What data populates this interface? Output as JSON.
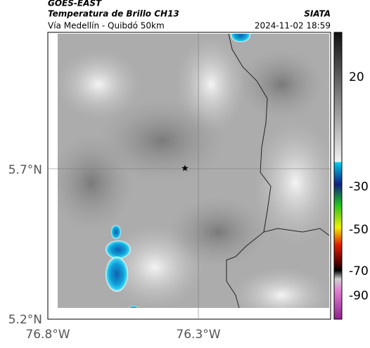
{
  "header": {
    "source": "GOES-EAST",
    "title": "Temperatura de Brillo CH13",
    "brand": "SIATA",
    "route": "Vía Medellín - Quibdó 50km",
    "timestamp": "2024-11-02 18:59"
  },
  "map": {
    "lat_ticks": [
      "5.7°N",
      "5.2°N"
    ],
    "lon_ticks": [
      "76.8°W",
      "76.3°W"
    ]
  },
  "colorbar": {
    "ticks": [
      "20",
      "-30",
      "-50",
      "-70",
      "-90"
    ]
  }
}
